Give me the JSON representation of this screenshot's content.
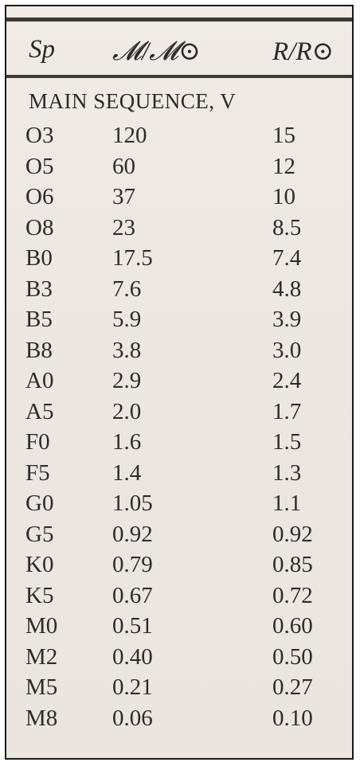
{
  "table": {
    "headers": {
      "sp": "Sp",
      "mass": "𝓜/𝓜⊙",
      "radius": "R/R⊙"
    },
    "section_title": "MAIN SEQUENCE, V",
    "rows": [
      {
        "sp": "O3",
        "mass": "120",
        "radius": "15"
      },
      {
        "sp": "O5",
        "mass": "60",
        "radius": "12"
      },
      {
        "sp": "O6",
        "mass": "37",
        "radius": "10"
      },
      {
        "sp": "O8",
        "mass": "23",
        "radius": "8.5"
      },
      {
        "sp": "B0",
        "mass": "17.5",
        "radius": "7.4"
      },
      {
        "sp": "B3",
        "mass": "7.6",
        "radius": "4.8"
      },
      {
        "sp": "B5",
        "mass": "5.9",
        "radius": "3.9"
      },
      {
        "sp": "B8",
        "mass": "3.8",
        "radius": "3.0"
      },
      {
        "sp": "A0",
        "mass": "2.9",
        "radius": "2.4"
      },
      {
        "sp": "A5",
        "mass": "2.0",
        "radius": "1.7"
      },
      {
        "sp": "F0",
        "mass": "1.6",
        "radius": "1.5"
      },
      {
        "sp": "F5",
        "mass": "1.4",
        "radius": "1.3"
      },
      {
        "sp": "G0",
        "mass": "1.05",
        "radius": "1.1"
      },
      {
        "sp": "G5",
        "mass": "0.92",
        "radius": "0.92"
      },
      {
        "sp": "K0",
        "mass": "0.79",
        "radius": "0.85"
      },
      {
        "sp": "K5",
        "mass": "0.67",
        "radius": "0.72"
      },
      {
        "sp": "M0",
        "mass": "0.51",
        "radius": "0.60"
      },
      {
        "sp": "M2",
        "mass": "0.40",
        "radius": "0.50"
      },
      {
        "sp": "M5",
        "mass": "0.21",
        "radius": "0.27"
      },
      {
        "sp": "M8",
        "mass": "0.06",
        "radius": "0.10"
      }
    ]
  }
}
